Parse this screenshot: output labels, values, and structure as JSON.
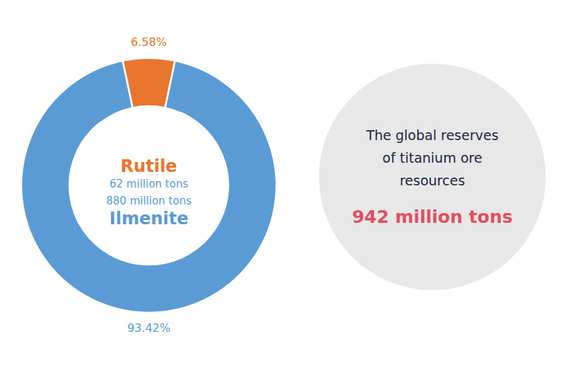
{
  "chart_data": {
    "type": "donut",
    "categories": [
      "Rutile",
      "Ilmenite"
    ],
    "values": [
      6.58,
      93.42
    ],
    "value_labels": [
      "6.58%",
      "93.42%"
    ],
    "amount_labels": [
      "62 million tons",
      "880 million tons"
    ],
    "colors": [
      "#E8762C",
      "#5B9BD5"
    ],
    "background": "#FFFFFF",
    "annotation": {
      "lines": [
        "The global reserves",
        "of titanium ore",
        "resources"
      ],
      "highlight": "942 million tons",
      "color": "#1A2744",
      "highlight_color": "#E05060",
      "background": "#E8E8E8"
    }
  }
}
